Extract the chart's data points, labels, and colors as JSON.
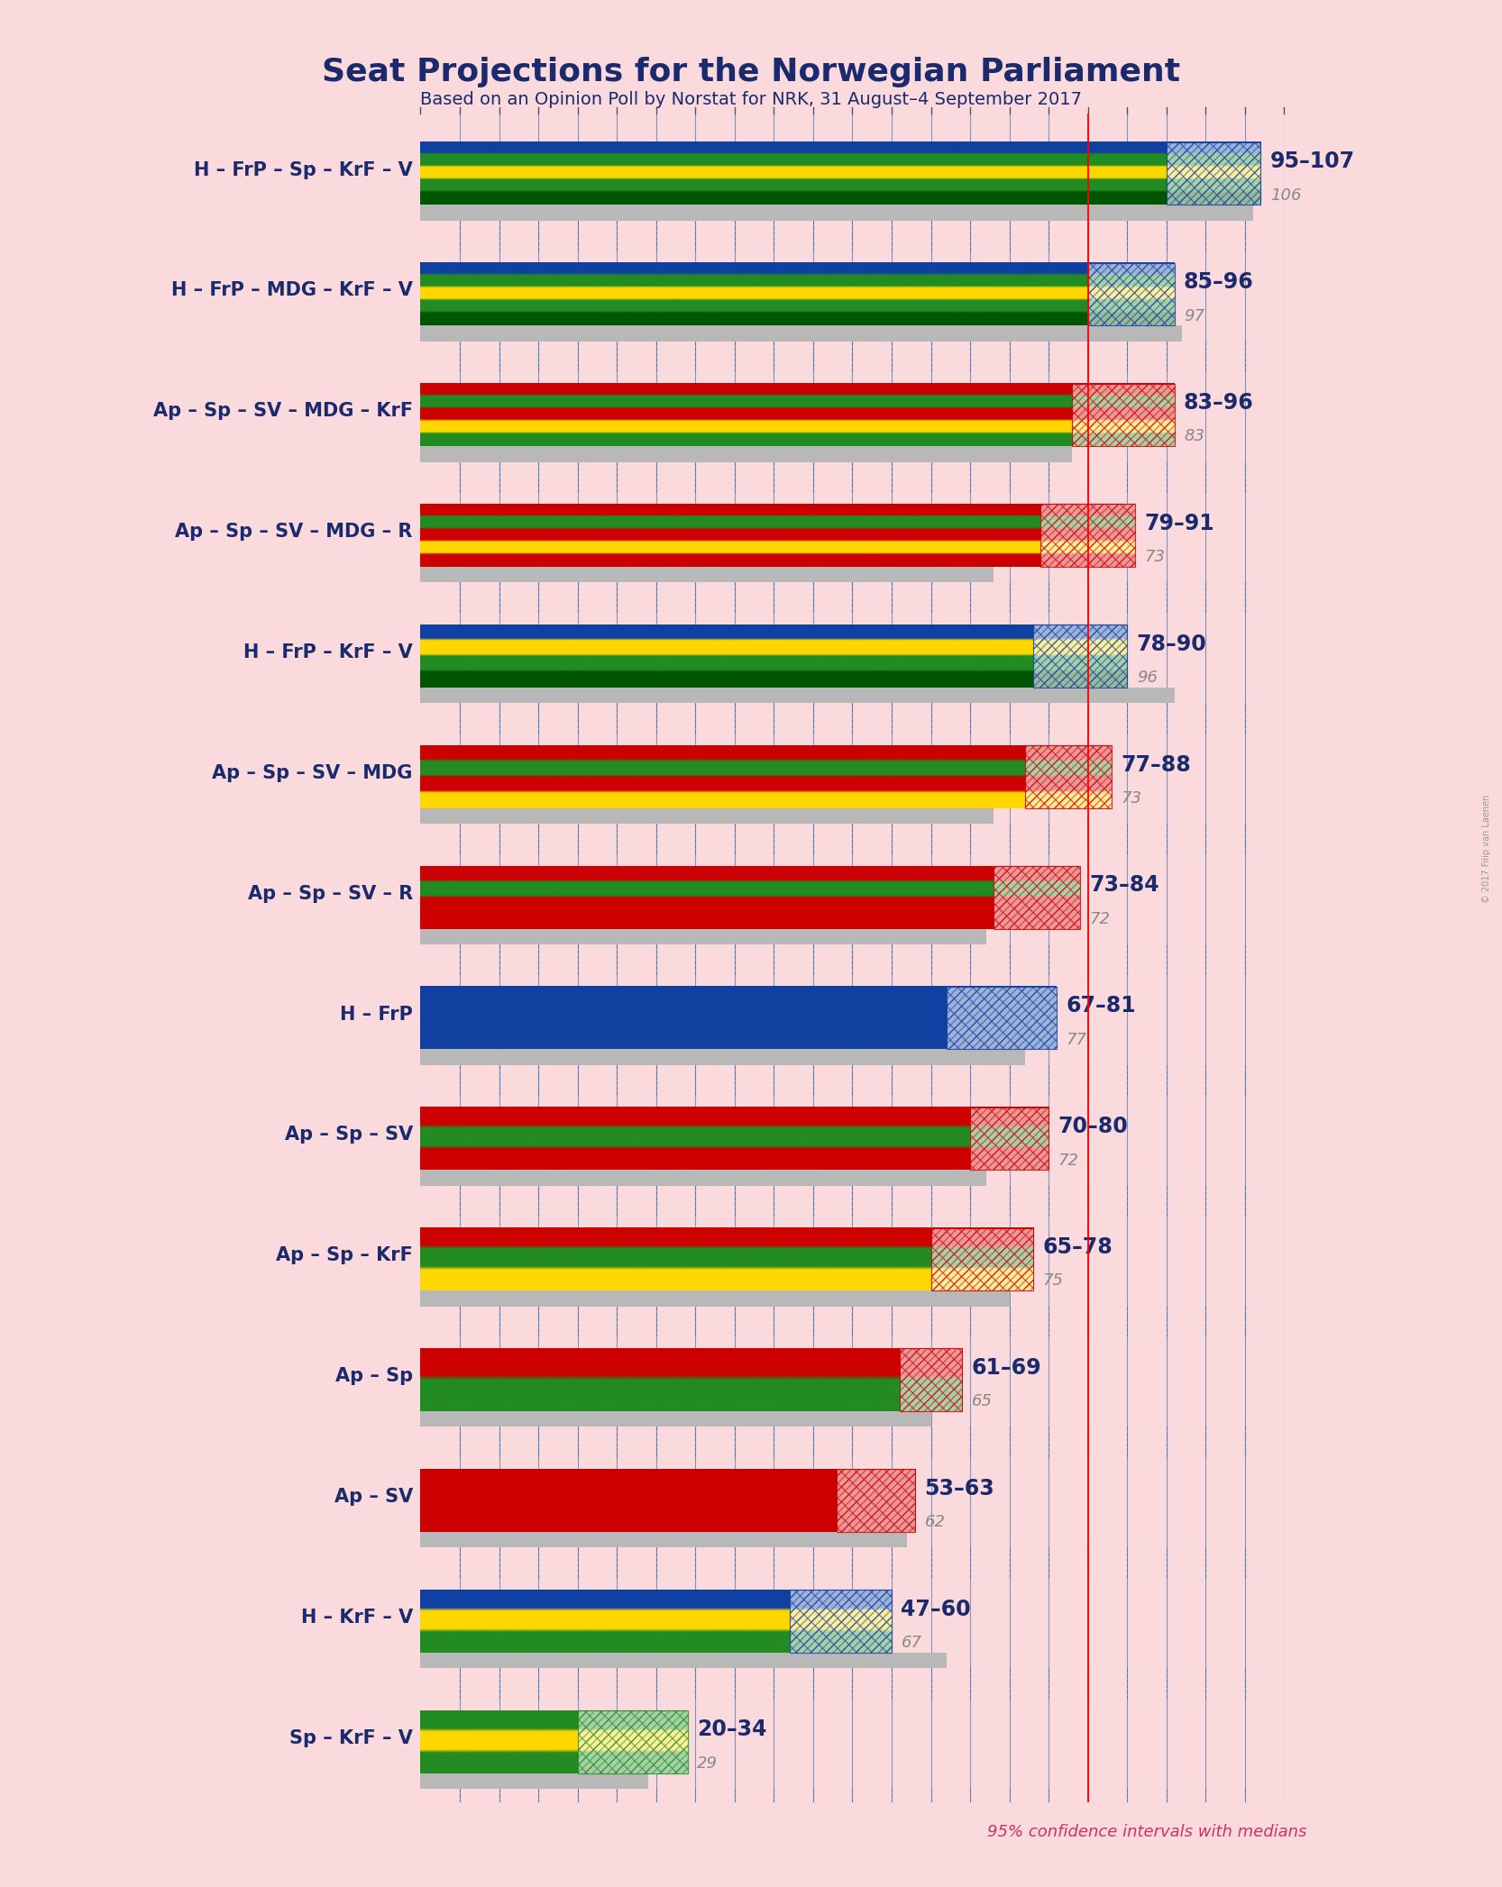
{
  "title": "Seat Projections for the Norwegian Parliament",
  "subtitle": "Based on an Opinion Poll by Norstat for NRK, 31 August–4 September 2017",
  "copyright": "© 2017 Filip van Laenen",
  "background_color": "#fadadd",
  "majority_line": 85,
  "x_min": 0,
  "x_max": 110,
  "note": "95% confidence intervals with medians",
  "coalitions": [
    {
      "name": "H – FrP – Sp – KrF – V",
      "ci_low": 95,
      "ci_high": 107,
      "median": 106,
      "stripe_colors": [
        "#1040a0",
        "#228b22",
        "#ffd700",
        "#228b22",
        "#005500"
      ],
      "hatch_type": "blue"
    },
    {
      "name": "H – FrP – MDG – KrF – V",
      "ci_low": 85,
      "ci_high": 96,
      "median": 97,
      "stripe_colors": [
        "#1040a0",
        "#228b22",
        "#ffd700",
        "#228b22",
        "#005500"
      ],
      "hatch_type": "blue"
    },
    {
      "name": "Ap – Sp – SV – MDG – KrF",
      "ci_low": 83,
      "ci_high": 96,
      "median": 83,
      "stripe_colors": [
        "#cc0000",
        "#228b22",
        "#cc0000",
        "#ffd700",
        "#228b22"
      ],
      "hatch_type": "red"
    },
    {
      "name": "Ap – Sp – SV – MDG – R",
      "ci_low": 79,
      "ci_high": 91,
      "median": 73,
      "stripe_colors": [
        "#cc0000",
        "#228b22",
        "#cc0000",
        "#ffd700",
        "#cc0000"
      ],
      "hatch_type": "red"
    },
    {
      "name": "H – FrP – KrF – V",
      "ci_low": 78,
      "ci_high": 90,
      "median": 96,
      "stripe_colors": [
        "#1040a0",
        "#ffd700",
        "#228b22",
        "#005500"
      ],
      "hatch_type": "blue"
    },
    {
      "name": "Ap – Sp – SV – MDG",
      "ci_low": 77,
      "ci_high": 88,
      "median": 73,
      "stripe_colors": [
        "#cc0000",
        "#228b22",
        "#cc0000",
        "#ffd700"
      ],
      "hatch_type": "red"
    },
    {
      "name": "Ap – Sp – SV – R",
      "ci_low": 73,
      "ci_high": 84,
      "median": 72,
      "stripe_colors": [
        "#cc0000",
        "#228b22",
        "#cc0000",
        "#cc0000"
      ],
      "hatch_type": "red"
    },
    {
      "name": "H – FrP",
      "ci_low": 67,
      "ci_high": 81,
      "median": 77,
      "stripe_colors": [
        "#1040a0",
        "#1040a0"
      ],
      "hatch_type": "blue"
    },
    {
      "name": "Ap – Sp – SV",
      "ci_low": 70,
      "ci_high": 80,
      "median": 72,
      "stripe_colors": [
        "#cc0000",
        "#228b22",
        "#cc0000"
      ],
      "hatch_type": "red"
    },
    {
      "name": "Ap – Sp – KrF",
      "ci_low": 65,
      "ci_high": 78,
      "median": 75,
      "stripe_colors": [
        "#cc0000",
        "#228b22",
        "#ffd700"
      ],
      "hatch_type": "red"
    },
    {
      "name": "Ap – Sp",
      "ci_low": 61,
      "ci_high": 69,
      "median": 65,
      "stripe_colors": [
        "#cc0000",
        "#228b22"
      ],
      "hatch_type": "red"
    },
    {
      "name": "Ap – SV",
      "ci_low": 53,
      "ci_high": 63,
      "median": 62,
      "stripe_colors": [
        "#cc0000",
        "#cc0000"
      ],
      "hatch_type": "red"
    },
    {
      "name": "H – KrF – V",
      "ci_low": 47,
      "ci_high": 60,
      "median": 67,
      "stripe_colors": [
        "#1040a0",
        "#ffd700",
        "#228b22"
      ],
      "hatch_type": "blue"
    },
    {
      "name": "Sp – KrF – V",
      "ci_low": 20,
      "ci_high": 34,
      "median": 29,
      "stripe_colors": [
        "#228b22",
        "#ffd700",
        "#228b22"
      ],
      "hatch_type": "green"
    }
  ]
}
